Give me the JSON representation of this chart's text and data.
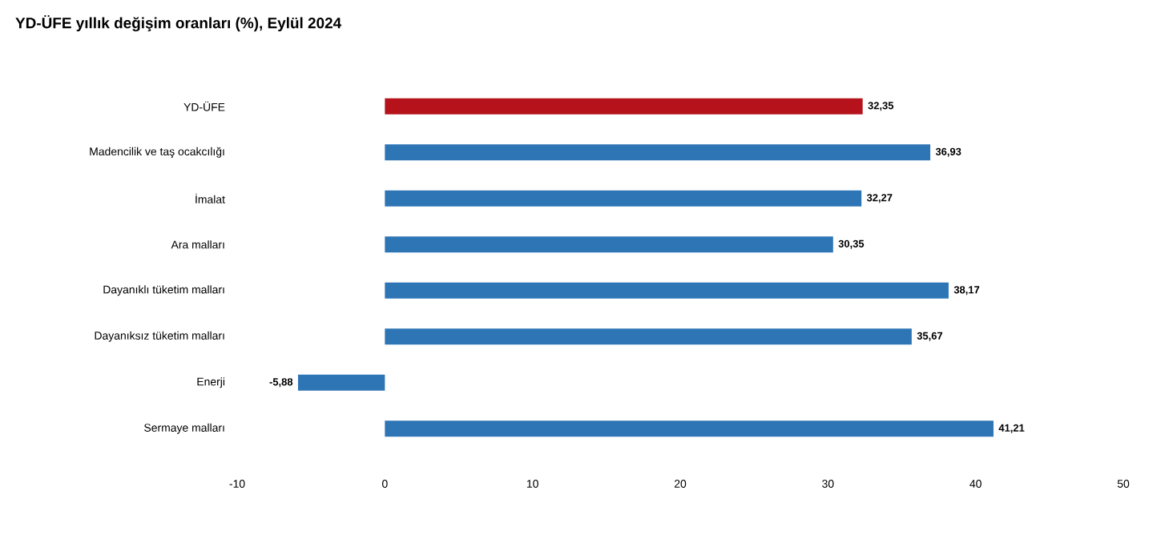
{
  "chart_data": {
    "type": "bar",
    "orientation": "horizontal",
    "title": "YD-ÜFE yıllık değişim oranları (%), Eylül 2024",
    "categories": [
      "YD-ÜFE",
      "Madencilik ve taş ocakcılığı",
      "İmalat",
      "Ara malları",
      "Dayanıklı tüketim malları",
      "Dayanıksız tüketim malları",
      "Enerji",
      "Sermaye malları"
    ],
    "values": [
      32.35,
      36.93,
      32.27,
      30.35,
      38.17,
      35.67,
      -5.88,
      41.21
    ],
    "value_labels": [
      "32,35",
      "36,93",
      "32,27",
      "30,35",
      "38,17",
      "35,67",
      "-5,88",
      "41,21"
    ],
    "colors": [
      "#b5121b",
      "#2e75b6",
      "#2e75b6",
      "#2e75b6",
      "#2e75b6",
      "#2e75b6",
      "#2e75b6",
      "#2e75b6"
    ],
    "xlim": [
      -10,
      50
    ],
    "xticks": [
      -10,
      0,
      10,
      20,
      30,
      40,
      50
    ],
    "grid": false
  }
}
